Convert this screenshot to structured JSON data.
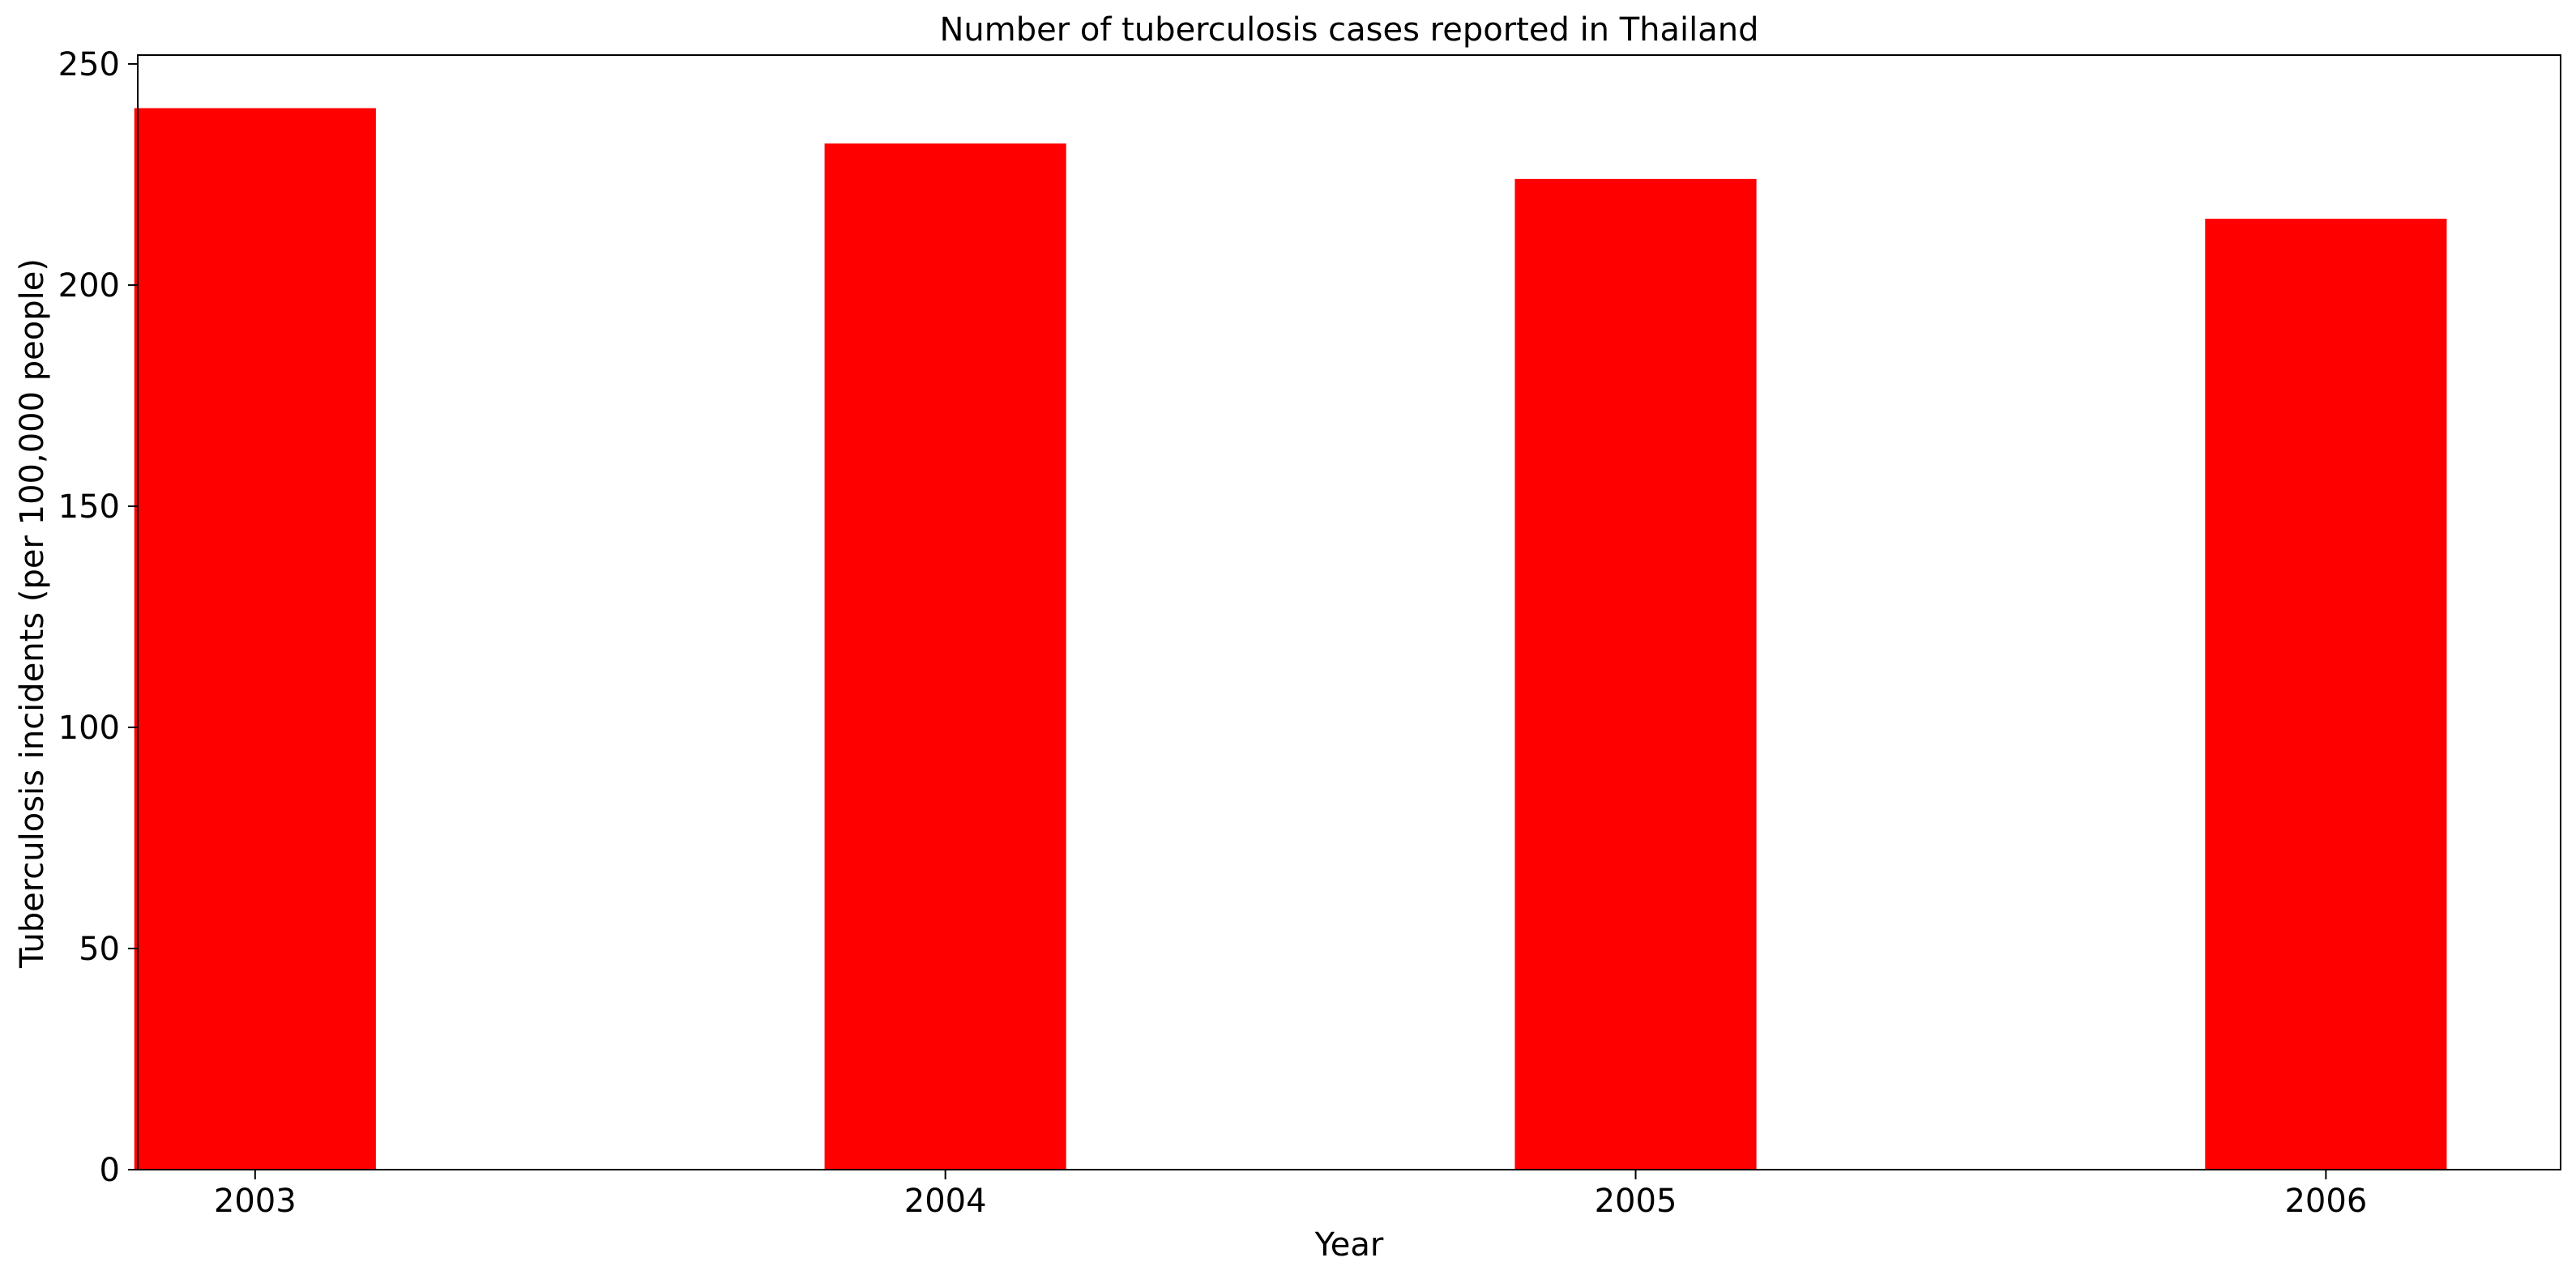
{
  "chart_data": {
    "type": "bar",
    "title": "Number of tuberculosis cases reported in Thailand",
    "xlabel": "Year",
    "ylabel": "Tuberculosis incidents (per 100,000 people)",
    "categories": [
      "2003",
      "2004",
      "2005",
      "2006"
    ],
    "values": [
      240,
      232,
      224,
      215
    ],
    "ylim": [
      0,
      252
    ],
    "yticks": [
      0,
      50,
      100,
      150,
      200,
      250
    ],
    "bar_color": "#ff0000",
    "grid": false,
    "legend": "none"
  }
}
